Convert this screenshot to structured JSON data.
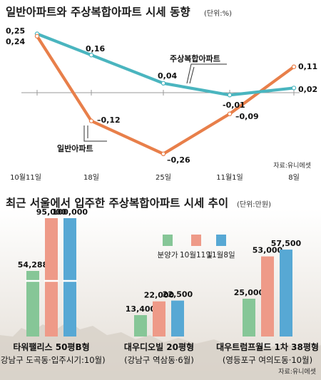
{
  "top": {
    "title": "일반아파트와 주상복합아파트 시세 동향",
    "unit": "(단위:%)",
    "source": "자료:유니에셋"
  },
  "bottom": {
    "title": "최근 서울에서 입주한 주상복합아파트 시세 추이",
    "unit": "(단위:만원)",
    "source": "자료:유니에셋"
  },
  "colors": {
    "teal": "#4ab5bf",
    "orange": "#e87f4a",
    "green": "#86c697",
    "salmon": "#ee9a88",
    "blue": "#57a8d4"
  },
  "chart_data": [
    {
      "type": "line",
      "title": "일반아파트와 주상복합아파트 시세 동향",
      "unit": "(단위:%)",
      "categories": [
        "10월11일",
        "18일",
        "25일",
        "11월1일",
        "8일"
      ],
      "series": [
        {
          "name": "주상복합아파트",
          "color": "#4ab5bf",
          "values": [
            0.25,
            0.16,
            0.04,
            -0.01,
            0.02
          ],
          "labels": [
            "0,25",
            "0,16",
            "0,04",
            "-0,01",
            "0,02"
          ]
        },
        {
          "name": "일반아파트",
          "color": "#e87f4a",
          "values": [
            0.24,
            -0.12,
            -0.26,
            -0.09,
            0.11
          ],
          "labels": [
            "0,24",
            "–0,12",
            "–0,26",
            "–0,09",
            "0,11"
          ]
        }
      ],
      "ylim": [
        -0.3,
        0.3
      ],
      "baseline": 0,
      "source": "자료:유니에셋"
    },
    {
      "type": "bar",
      "title": "최근 서울에서 입주한 주상복합아파트 시세 추이",
      "unit": "(단위:만원)",
      "legend": [
        "분양가",
        "10월11일",
        "11월8일"
      ],
      "groups": [
        {
          "name": "타워팰리스 50평B형",
          "sub": "(강남구 도곡동·입주시기:10월)",
          "values": [
            54288,
            95000,
            100000
          ],
          "labels": [
            "54,288",
            "95,000",
            "100,000"
          ],
          "broken": true
        },
        {
          "name": "대우디오빌 20평형",
          "sub": "(강남구 역삼동·6월)",
          "values": [
            13400,
            22000,
            22500
          ],
          "labels": [
            "13,400",
            "22,000",
            "22,500"
          ],
          "broken": false
        },
        {
          "name": "대우트럼프월드 1차 38평형",
          "sub": "(영등포구 여의도동·10월)",
          "values": [
            25000,
            53000,
            57500
          ],
          "labels": [
            "25,000",
            "53,000",
            "57,500"
          ],
          "broken": false
        }
      ],
      "source": "자료:유니에셋"
    }
  ]
}
